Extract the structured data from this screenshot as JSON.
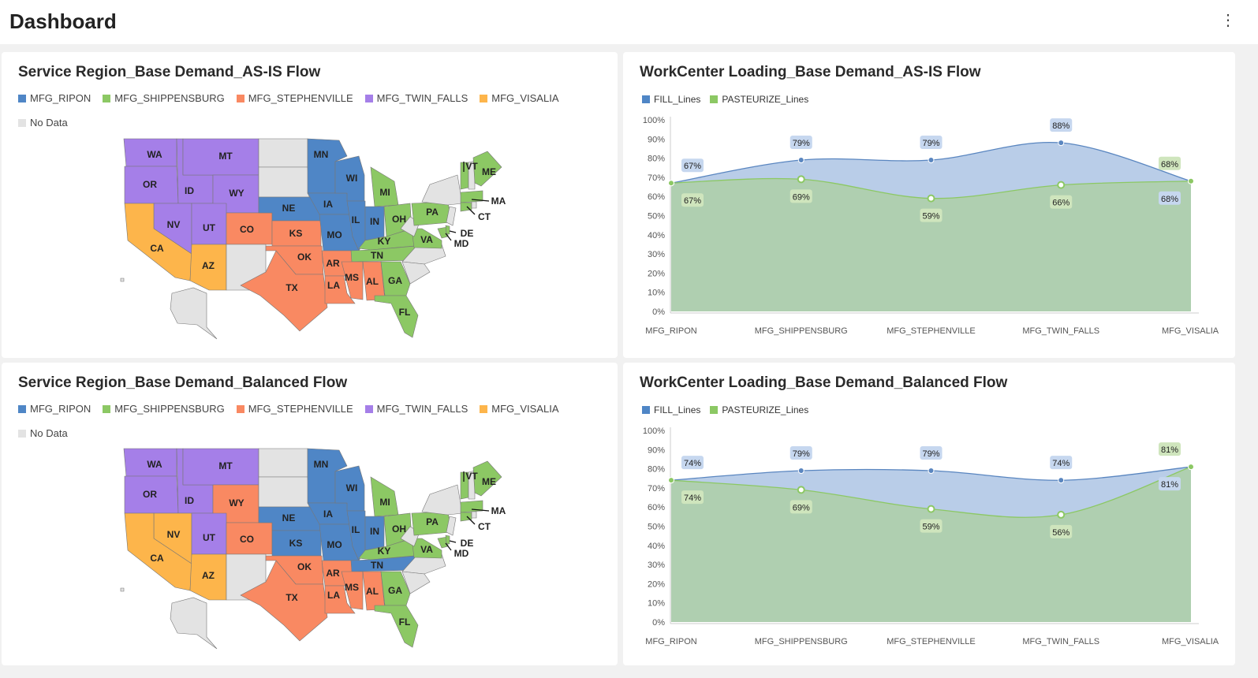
{
  "header": {
    "title": "Dashboard",
    "menu_icon": "more-vertical-icon"
  },
  "colors": {
    "MFG_RIPON": "#4f86c6",
    "MFG_SHIPPENSBURG": "#8cc864",
    "MFG_STEPHENVILLE": "#f98962",
    "MFG_TWIN_FALLS": "#a57fe8",
    "MFG_VISALIA": "#fdb54b",
    "No Data": "#e3e3e3",
    "FILL_Lines": "#4f86c6",
    "PASTEURIZE_Lines": "#8cc864"
  },
  "maps": [
    {
      "title": "Service Region_Base Demand_AS-IS Flow",
      "legend": [
        "MFG_RIPON",
        "MFG_SHIPPENSBURG",
        "MFG_STEPHENVILLE",
        "MFG_TWIN_FALLS",
        "MFG_VISALIA",
        "No Data"
      ],
      "states": {
        "WA": "MFG_TWIN_FALLS",
        "OR": "MFG_TWIN_FALLS",
        "ID": "MFG_TWIN_FALLS",
        "MT": "MFG_TWIN_FALLS",
        "WY": "MFG_TWIN_FALLS",
        "NV": "MFG_TWIN_FALLS",
        "UT": "MFG_TWIN_FALLS",
        "CA": "MFG_VISALIA",
        "AZ": "MFG_VISALIA",
        "CO": "MFG_STEPHENVILLE",
        "KS": "MFG_STEPHENVILLE",
        "OK": "MFG_STEPHENVILLE",
        "TX": "MFG_STEPHENVILLE",
        "AR": "MFG_STEPHENVILLE",
        "LA": "MFG_STEPHENVILLE",
        "MS": "MFG_STEPHENVILLE",
        "AL": "MFG_STEPHENVILLE",
        "NE": "MFG_RIPON",
        "MN": "MFG_RIPON",
        "IA": "MFG_RIPON",
        "MO": "MFG_RIPON",
        "WI": "MFG_RIPON",
        "IL": "MFG_RIPON",
        "IN": "MFG_RIPON",
        "MI": "MFG_SHIPPENSBURG",
        "OH": "MFG_SHIPPENSBURG",
        "KY": "MFG_SHIPPENSBURG",
        "TN": "MFG_SHIPPENSBURG",
        "GA": "MFG_SHIPPENSBURG",
        "FL": "MFG_SHIPPENSBURG",
        "PA": "MFG_SHIPPENSBURG",
        "VA": "MFG_SHIPPENSBURG",
        "MD": "MFG_SHIPPENSBURG",
        "DE": "MFG_SHIPPENSBURG",
        "VT": "MFG_SHIPPENSBURG",
        "ME": "MFG_SHIPPENSBURG",
        "MA": "MFG_SHIPPENSBURG",
        "CT": "MFG_SHIPPENSBURG"
      }
    },
    {
      "title": "Service Region_Base Demand_Balanced Flow",
      "legend": [
        "MFG_RIPON",
        "MFG_SHIPPENSBURG",
        "MFG_STEPHENVILLE",
        "MFG_TWIN_FALLS",
        "MFG_VISALIA",
        "No Data"
      ],
      "states": {
        "WA": "MFG_TWIN_FALLS",
        "OR": "MFG_TWIN_FALLS",
        "ID": "MFG_TWIN_FALLS",
        "MT": "MFG_TWIN_FALLS",
        "WY": "MFG_STEPHENVILLE",
        "NV": "MFG_VISALIA",
        "UT": "MFG_TWIN_FALLS",
        "CA": "MFG_VISALIA",
        "AZ": "MFG_VISALIA",
        "CO": "MFG_STEPHENVILLE",
        "KS": "MFG_RIPON",
        "OK": "MFG_STEPHENVILLE",
        "TX": "MFG_STEPHENVILLE",
        "AR": "MFG_STEPHENVILLE",
        "LA": "MFG_STEPHENVILLE",
        "MS": "MFG_STEPHENVILLE",
        "AL": "MFG_STEPHENVILLE",
        "NE": "MFG_RIPON",
        "MN": "MFG_RIPON",
        "IA": "MFG_RIPON",
        "MO": "MFG_RIPON",
        "WI": "MFG_RIPON",
        "IL": "MFG_RIPON",
        "IN": "MFG_RIPON",
        "MI": "MFG_SHIPPENSBURG",
        "OH": "MFG_SHIPPENSBURG",
        "KY": "MFG_SHIPPENSBURG",
        "TN": "MFG_RIPON",
        "GA": "MFG_SHIPPENSBURG",
        "FL": "MFG_SHIPPENSBURG",
        "PA": "MFG_SHIPPENSBURG",
        "VA": "MFG_SHIPPENSBURG",
        "MD": "MFG_SHIPPENSBURG",
        "DE": "MFG_SHIPPENSBURG",
        "VT": "MFG_SHIPPENSBURG",
        "ME": "MFG_SHIPPENSBURG",
        "MA": "MFG_SHIPPENSBURG",
        "CT": "MFG_SHIPPENSBURG"
      }
    }
  ],
  "chart_data": [
    {
      "type": "area",
      "title": "WorkCenter Loading_Base Demand_AS-IS Flow",
      "categories": [
        "MFG_RIPON",
        "MFG_SHIPPENSBURG",
        "MFG_STEPHENVILLE",
        "MFG_TWIN_FALLS",
        "MFG_VISALIA"
      ],
      "series": [
        {
          "name": "FILL_Lines",
          "values": [
            67,
            79,
            79,
            88,
            68
          ]
        },
        {
          "name": "PASTEURIZE_Lines",
          "values": [
            67,
            69,
            59,
            66,
            68
          ]
        }
      ],
      "ylim": [
        0,
        100
      ],
      "yticks": [
        "0%",
        "10%",
        "20%",
        "30%",
        "40%",
        "50%",
        "60%",
        "70%",
        "80%",
        "90%",
        "100%"
      ],
      "legend": "top-left",
      "grid": false
    },
    {
      "type": "area",
      "title": "WorkCenter Loading_Base Demand_Balanced Flow",
      "categories": [
        "MFG_RIPON",
        "MFG_SHIPPENSBURG",
        "MFG_STEPHENVILLE",
        "MFG_TWIN_FALLS",
        "MFG_VISALIA"
      ],
      "series": [
        {
          "name": "FILL_Lines",
          "values": [
            74,
            79,
            79,
            74,
            81
          ]
        },
        {
          "name": "PASTEURIZE_Lines",
          "values": [
            74,
            69,
            59,
            56,
            81
          ]
        }
      ],
      "ylim": [
        0,
        100
      ],
      "yticks": [
        "0%",
        "10%",
        "20%",
        "30%",
        "40%",
        "50%",
        "60%",
        "70%",
        "80%",
        "90%",
        "100%"
      ],
      "legend": "top-left",
      "grid": false
    }
  ]
}
